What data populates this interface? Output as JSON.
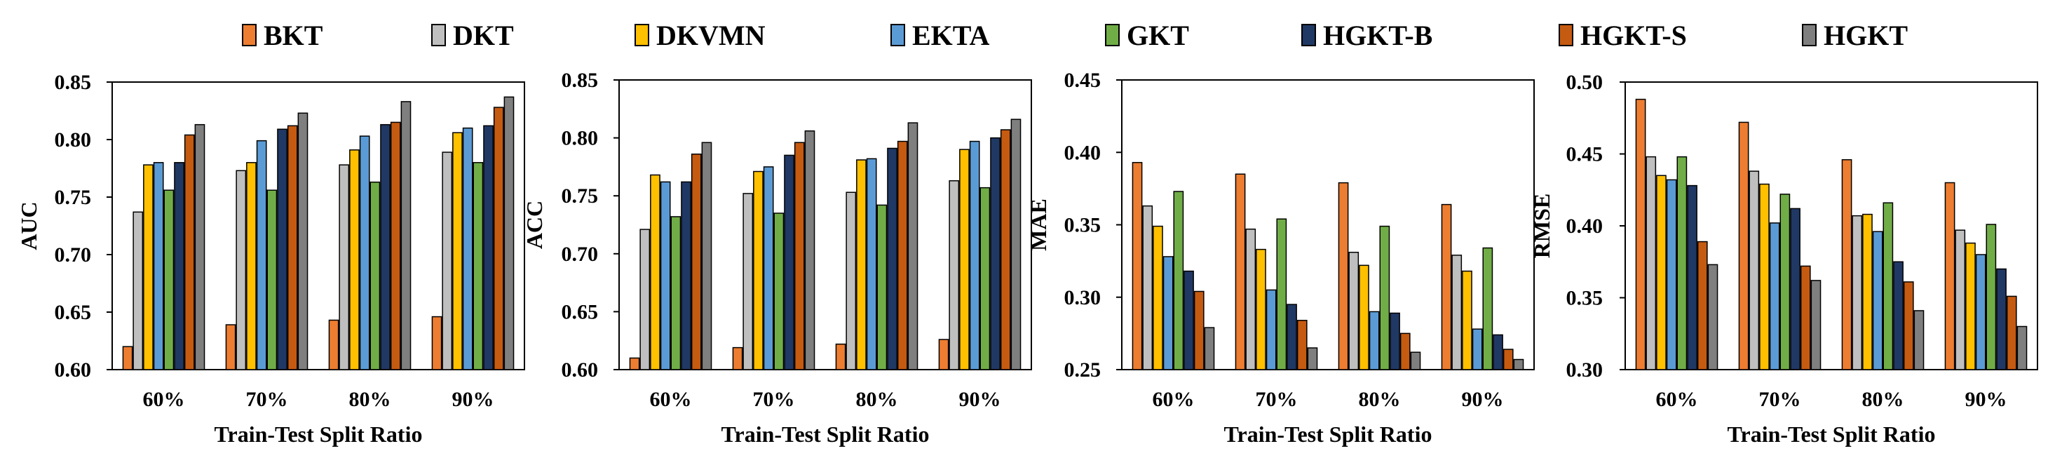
{
  "legend": [
    {
      "name": "BKT",
      "color": "#ED7D31"
    },
    {
      "name": "DKT",
      "color": "#BFBFBF"
    },
    {
      "name": "DKVMN",
      "color": "#FFC000"
    },
    {
      "name": "EKTA",
      "color": "#5B9BD5"
    },
    {
      "name": "GKT",
      "color": "#70AD47"
    },
    {
      "name": "HGKT-B",
      "color": "#203864"
    },
    {
      "name": "HGKT-S",
      "color": "#C55A11"
    },
    {
      "name": "HGKT",
      "color": "#7F7F7F"
    }
  ],
  "chart_data": [
    {
      "type": "bar",
      "ylabel": "AUC",
      "xlabel": "Train-Test Split Ratio",
      "categories": [
        "60%",
        "70%",
        "80%",
        "90%"
      ],
      "ylim": [
        0.6,
        0.85
      ],
      "yticks": [
        "0.60",
        "0.65",
        "0.70",
        "0.75",
        "0.80",
        "0.85"
      ],
      "series": [
        {
          "name": "BKT",
          "values": [
            0.62,
            0.639,
            0.643,
            0.646
          ]
        },
        {
          "name": "DKT",
          "values": [
            0.737,
            0.773,
            0.778,
            0.789
          ]
        },
        {
          "name": "DKVMN",
          "values": [
            0.778,
            0.78,
            0.791,
            0.806
          ]
        },
        {
          "name": "EKTA",
          "values": [
            0.78,
            0.799,
            0.803,
            0.81
          ]
        },
        {
          "name": "GKT",
          "values": [
            0.756,
            0.756,
            0.763,
            0.78
          ]
        },
        {
          "name": "HGKT-B",
          "values": [
            0.78,
            0.809,
            0.813,
            0.812
          ]
        },
        {
          "name": "HGKT-S",
          "values": [
            0.804,
            0.812,
            0.815,
            0.828
          ]
        },
        {
          "name": "HGKT",
          "values": [
            0.813,
            0.823,
            0.833,
            0.837
          ]
        }
      ]
    },
    {
      "type": "bar",
      "ylabel": "ACC",
      "xlabel": "Train-Test Split Ratio",
      "categories": [
        "60%",
        "70%",
        "80%",
        "90%"
      ],
      "ylim": [
        0.6,
        0.85
      ],
      "yticks": [
        "0.60",
        "0.65",
        "0.70",
        "0.75",
        "0.80",
        "0.85"
      ],
      "series": [
        {
          "name": "BKT",
          "values": [
            0.61,
            0.619,
            0.622,
            0.626
          ]
        },
        {
          "name": "DKT",
          "values": [
            0.721,
            0.752,
            0.753,
            0.763
          ]
        },
        {
          "name": "DKVMN",
          "values": [
            0.768,
            0.771,
            0.781,
            0.79
          ]
        },
        {
          "name": "EKTA",
          "values": [
            0.762,
            0.775,
            0.782,
            0.797
          ]
        },
        {
          "name": "GKT",
          "values": [
            0.732,
            0.735,
            0.742,
            0.757
          ]
        },
        {
          "name": "HGKT-B",
          "values": [
            0.762,
            0.785,
            0.791,
            0.8
          ]
        },
        {
          "name": "HGKT-S",
          "values": [
            0.786,
            0.796,
            0.797,
            0.807
          ]
        },
        {
          "name": "HGKT",
          "values": [
            0.796,
            0.806,
            0.813,
            0.816
          ]
        }
      ]
    },
    {
      "type": "bar",
      "ylabel": "MAE",
      "xlabel": "Train-Test Split Ratio",
      "categories": [
        "60%",
        "70%",
        "80%",
        "90%"
      ],
      "ylim": [
        0.25,
        0.45
      ],
      "yticks": [
        "0.25",
        "0.30",
        "0.35",
        "0.40",
        "0.45"
      ],
      "series": [
        {
          "name": "BKT",
          "values": [
            0.393,
            0.385,
            0.379,
            0.364
          ]
        },
        {
          "name": "DKT",
          "values": [
            0.363,
            0.347,
            0.331,
            0.329
          ]
        },
        {
          "name": "DKVMN",
          "values": [
            0.349,
            0.333,
            0.322,
            0.318
          ]
        },
        {
          "name": "EKTA",
          "values": [
            0.328,
            0.305,
            0.29,
            0.278
          ]
        },
        {
          "name": "GKT",
          "values": [
            0.373,
            0.354,
            0.349,
            0.334
          ]
        },
        {
          "name": "HGKT-B",
          "values": [
            0.318,
            0.295,
            0.289,
            0.274
          ]
        },
        {
          "name": "HGKT-S",
          "values": [
            0.304,
            0.284,
            0.275,
            0.264
          ]
        },
        {
          "name": "HGKT",
          "values": [
            0.279,
            0.265,
            0.262,
            0.257
          ]
        }
      ]
    },
    {
      "type": "bar",
      "ylabel": "RMSE",
      "xlabel": "Train-Test Split Ratio",
      "categories": [
        "60%",
        "70%",
        "80%",
        "90%"
      ],
      "ylim": [
        0.3,
        0.5
      ],
      "yticks": [
        "0.30",
        "0.35",
        "0.40",
        "0.45",
        "0.50"
      ],
      "series": [
        {
          "name": "BKT",
          "values": [
            0.488,
            0.472,
            0.446,
            0.43
          ]
        },
        {
          "name": "DKT",
          "values": [
            0.448,
            0.438,
            0.407,
            0.397
          ]
        },
        {
          "name": "DKVMN",
          "values": [
            0.435,
            0.429,
            0.408,
            0.388
          ]
        },
        {
          "name": "EKTA",
          "values": [
            0.432,
            0.402,
            0.396,
            0.38
          ]
        },
        {
          "name": "GKT",
          "values": [
            0.448,
            0.422,
            0.416,
            0.401
          ]
        },
        {
          "name": "HGKT-B",
          "values": [
            0.428,
            0.412,
            0.375,
            0.37
          ]
        },
        {
          "name": "HGKT-S",
          "values": [
            0.389,
            0.372,
            0.361,
            0.351
          ]
        },
        {
          "name": "HGKT",
          "values": [
            0.373,
            0.362,
            0.341,
            0.33
          ]
        }
      ]
    }
  ]
}
